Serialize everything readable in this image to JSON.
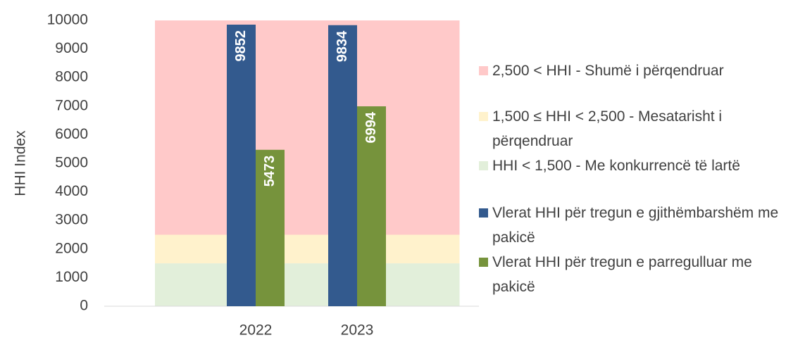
{
  "chart_data": {
    "type": "bar",
    "y_label": "HHI Index",
    "categories": [
      "2022",
      "2023"
    ],
    "series": [
      {
        "name": "2,500 < HHI - Shumë i përqendruar",
        "color": "#ffc9c9",
        "values": [
          7500,
          7500
        ],
        "stack": true
      },
      {
        "name": "1,500 ≤ HHI < 2,500 - Mesatarisht i përqendruar",
        "color": "#fff2cc",
        "values": [
          1000,
          1000
        ],
        "stack": true
      },
      {
        "name": "HHI < 1,500 - Me konkurrencë të lartë",
        "color": "#e2efda",
        "values": [
          1500,
          1500
        ],
        "stack": true
      },
      {
        "name": "Vlerat HHI për tregun e gjithëmbarshëm me pakicë",
        "color": "#335a8e",
        "values": [
          9852,
          9834
        ]
      },
      {
        "name": "Vlerat HHI për tregun e parregulluar me pakicë",
        "color": "#76933c",
        "values": [
          5473,
          6994
        ]
      }
    ],
    "ylim": [
      0,
      10000
    ],
    "yticks": [
      0,
      1000,
      2000,
      3000,
      4000,
      5000,
      6000,
      7000,
      8000,
      9000,
      10000
    ],
    "legend": "right"
  }
}
